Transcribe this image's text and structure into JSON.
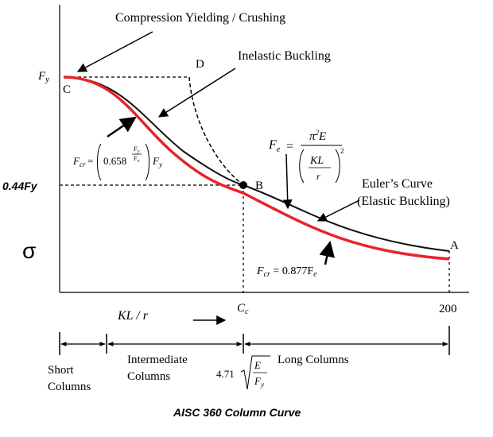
{
  "title": "Compression Yielding / Crushing",
  "labels": {
    "fy_axis": "F",
    "fy_axis_sub": "y",
    "point_c": "C",
    "point_d": "D",
    "point_b": "B",
    "point_a": "A",
    "inelastic": "Inelastic Buckling",
    "euler_line1": "Euler’s Curve",
    "euler_line2": "(Elastic Buckling)",
    "y044": "0.44Fy",
    "sigma": "σ",
    "xaxis_kl": "KL / r",
    "xaxis_arrow": "⟶",
    "cc": "C",
    "cc_sub": "c",
    "x200": "200",
    "short_line1": "Short",
    "short_line2": "Columns",
    "inter_line1": "Intermediate",
    "inter_line2": "Columns",
    "long": "Long Columns",
    "caption": "AISC 360 Column Curve"
  },
  "formulas": {
    "fcr_inelastic_lhs": "F",
    "fcr_inelastic_lhs_sub": "cr",
    "fcr_inelastic_base": "0.658",
    "fcr_inelastic_exp_num": "F",
    "fcr_inelastic_exp_num_sub": "y",
    "fcr_inelastic_exp_den": "F",
    "fcr_inelastic_exp_den_sub": "e",
    "fcr_inelastic_tail": "F",
    "fcr_inelastic_tail_sub": "y",
    "fe_lhs": "F",
    "fe_lhs_sub": "e",
    "fe_num": "π",
    "fe_num_sup": "2",
    "fe_num_e": "E",
    "fe_den_kl": "KL",
    "fe_den_r": "r",
    "fe_den_sup": "2",
    "fcr_elastic": "0.877F",
    "fcr_elastic_lhs": "F",
    "fcr_elastic_lhs_sub": "cr",
    "fcr_elastic_sub": "e",
    "slender_coef": "4.71",
    "slender_num": "E",
    "slender_den": "F",
    "slender_den_sub": "y"
  },
  "colors": {
    "design_curve": "#e8232a",
    "theory_curve": "#111111",
    "axis": "#000000"
  }
}
